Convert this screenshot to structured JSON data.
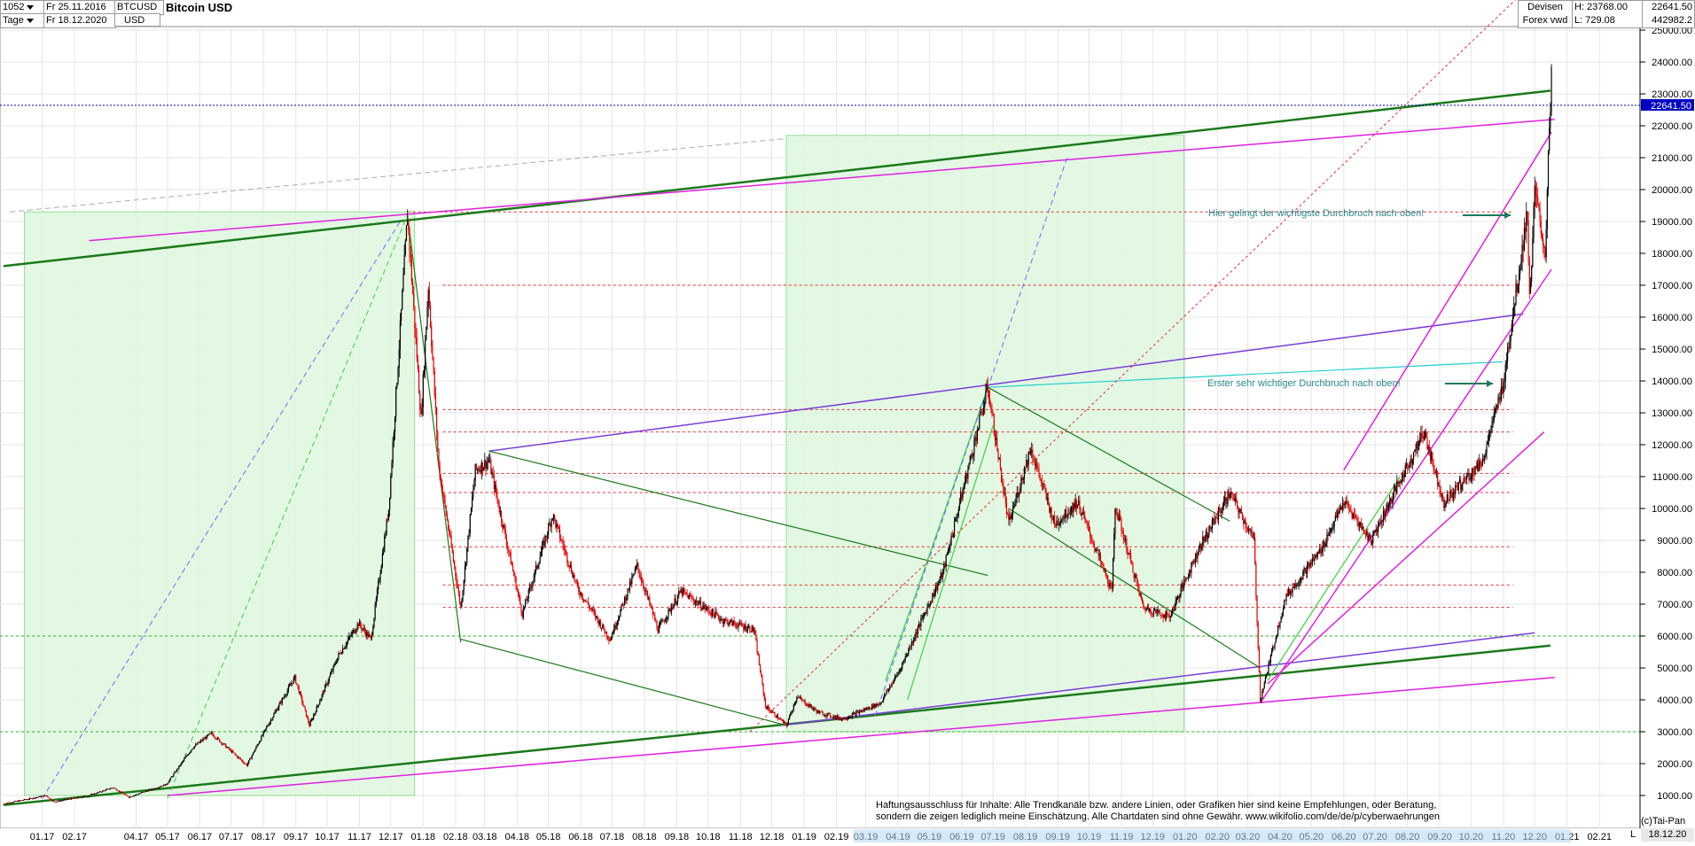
{
  "header": {
    "bars": "1052",
    "period": "Tage",
    "date_from": "Fr 25.11.2016",
    "date_to": "Fr 18.12.2020",
    "symbol": "BTCUSD",
    "currency": "USD",
    "title": "Bitcoin USD",
    "market": "Devisen",
    "market_sub": "Forex vwd",
    "high_label": "H: 23768.00",
    "low_label": "L: 729.08",
    "last_value": "22641.50",
    "volume_value": "442982.2",
    "last_tag": "22641.50"
  },
  "footer": {
    "disclaimer_1": "Haftungsausschluss für Inhalte: Alle Trendkanäle bzw. andere Linien, oder Grafiken hier sind keine Empfehlungen, oder Beratung,",
    "disclaimer_2": "sondern die zeigen lediglich meine  Einschätzung. Alle Chartdaten sind ohne Gewähr.  www.wikifolio.com/de/de/p/cyberwaehrungen",
    "copyright": "(c)Tai-Pan",
    "last_date": "18.12.20",
    "scale_mode": "L"
  },
  "annotations": {
    "breakout_1": "Erster sehr wichtiger Durchbruch nach oben!",
    "breakout_2": "Hier gelingt der wichtigste Durchbruch nach oben!"
  },
  "colors": {
    "candle_up": "#000000",
    "candle_down": "#e00000",
    "trend_dark_green": "#1a7a1a",
    "trend_magenta": "#e020e0",
    "trend_purple": "#7a3cd8",
    "annotation_teal": "#2a8a8a",
    "last_price_line": "#0000c0"
  },
  "chart_data": {
    "type": "candlestick",
    "title": "Bitcoin USD",
    "symbol": "BTCUSD",
    "period": "daily",
    "ylim": [
      0,
      26000
    ],
    "y_ticks": [
      "1000.00",
      "2000.00",
      "3000.00",
      "4000.00",
      "5000.00",
      "6000.00",
      "7000.00",
      "8000.00",
      "9000.00",
      "10000.00",
      "11000.00",
      "12000.00",
      "13000.00",
      "14000.00",
      "15000.00",
      "16000.00",
      "17000.00",
      "18000.00",
      "19000.00",
      "20000.00",
      "21000.00",
      "22000.00",
      "23000.00",
      "24000.00",
      "25000.00"
    ],
    "x_ticks": [
      "01.17",
      "02.17",
      "04.17",
      "05.17",
      "06.17",
      "07.17",
      "08.17",
      "09.17",
      "10.17",
      "11.17",
      "12.17",
      "01.18",
      "02.18",
      "03.18",
      "04.18",
      "05.18",
      "06.18",
      "07.18",
      "08.18",
      "09.18",
      "10.18",
      "11.18",
      "12.18",
      "01.19",
      "02.19",
      "03.19",
      "04.19",
      "05.19",
      "06.19",
      "07.19",
      "08.19",
      "09.19",
      "10.19",
      "11.19",
      "12.19",
      "01.20",
      "02.20",
      "03.20",
      "04.20",
      "05.20",
      "06.20",
      "07.20",
      "08.20",
      "09.20",
      "10.20",
      "11.20",
      "12.20",
      "01.21",
      "02.21"
    ],
    "x_range": [
      "2016-11-25",
      "2021-02-28"
    ],
    "price_path": [
      [
        "2016-11-25",
        740
      ],
      [
        "2017-01-05",
        1000
      ],
      [
        "2017-01-12",
        800
      ],
      [
        "2017-02-15",
        1000
      ],
      [
        "2017-03-10",
        1250
      ],
      [
        "2017-03-25",
        950
      ],
      [
        "2017-04-30",
        1350
      ],
      [
        "2017-05-25",
        2500
      ],
      [
        "2017-06-12",
        2950
      ],
      [
        "2017-07-16",
        1950
      ],
      [
        "2017-08-05",
        3200
      ],
      [
        "2017-08-31",
        4700
      ],
      [
        "2017-09-14",
        3200
      ],
      [
        "2017-10-12",
        5400
      ],
      [
        "2017-10-31",
        6400
      ],
      [
        "2017-11-12",
        5900
      ],
      [
        "2017-11-29",
        10000
      ],
      [
        "2017-12-17",
        19200
      ],
      [
        "2017-12-30",
        12800
      ],
      [
        "2018-01-06",
        17000
      ],
      [
        "2018-01-16",
        11300
      ],
      [
        "2018-02-06",
        6900
      ],
      [
        "2018-02-20",
        11200
      ],
      [
        "2018-03-05",
        11500
      ],
      [
        "2018-04-06",
        6700
      ],
      [
        "2018-05-05",
        9800
      ],
      [
        "2018-05-29",
        7500
      ],
      [
        "2018-06-29",
        5900
      ],
      [
        "2018-07-25",
        8200
      ],
      [
        "2018-08-14",
        6200
      ],
      [
        "2018-09-05",
        7400
      ],
      [
        "2018-10-15",
        6500
      ],
      [
        "2018-11-14",
        6200
      ],
      [
        "2018-11-25",
        3800
      ],
      [
        "2018-12-15",
        3200
      ],
      [
        "2018-12-25",
        4100
      ],
      [
        "2019-01-15",
        3600
      ],
      [
        "2019-02-07",
        3400
      ],
      [
        "2019-03-15",
        3900
      ],
      [
        "2019-04-02",
        4900
      ],
      [
        "2019-05-14",
        8000
      ],
      [
        "2019-06-26",
        13800
      ],
      [
        "2019-07-16",
        9500
      ],
      [
        "2019-08-06",
        11900
      ],
      [
        "2019-08-29",
        9500
      ],
      [
        "2019-09-20",
        10200
      ],
      [
        "2019-10-23",
        7400
      ],
      [
        "2019-10-26",
        10100
      ],
      [
        "2019-11-22",
        6900
      ],
      [
        "2019-12-17",
        6600
      ],
      [
        "2020-01-15",
        8800
      ],
      [
        "2020-02-13",
        10500
      ],
      [
        "2020-03-07",
        9000
      ],
      [
        "2020-03-13",
        4000
      ],
      [
        "2020-04-06",
        7200
      ],
      [
        "2020-05-10",
        8700
      ],
      [
        "2020-06-01",
        10200
      ],
      [
        "2020-06-27",
        9000
      ],
      [
        "2020-07-27",
        11000
      ],
      [
        "2020-08-17",
        12400
      ],
      [
        "2020-09-05",
        10200
      ],
      [
        "2020-10-12",
        11500
      ],
      [
        "2020-10-31",
        13800
      ],
      [
        "2020-11-24",
        19300
      ],
      [
        "2020-11-26",
        16500
      ],
      [
        "2020-12-01",
        19900
      ],
      [
        "2020-12-11",
        18000
      ],
      [
        "2020-12-17",
        23768
      ],
      [
        "2020-12-18",
        22641.5
      ]
    ],
    "last_price": 22641.5,
    "high": 23768.0,
    "low": 729.08,
    "horizontal_levels": [
      19300,
      17000,
      13100,
      12400,
      11100,
      10500,
      8800,
      7600,
      6900,
      6000,
      3000
    ],
    "grid": true
  }
}
